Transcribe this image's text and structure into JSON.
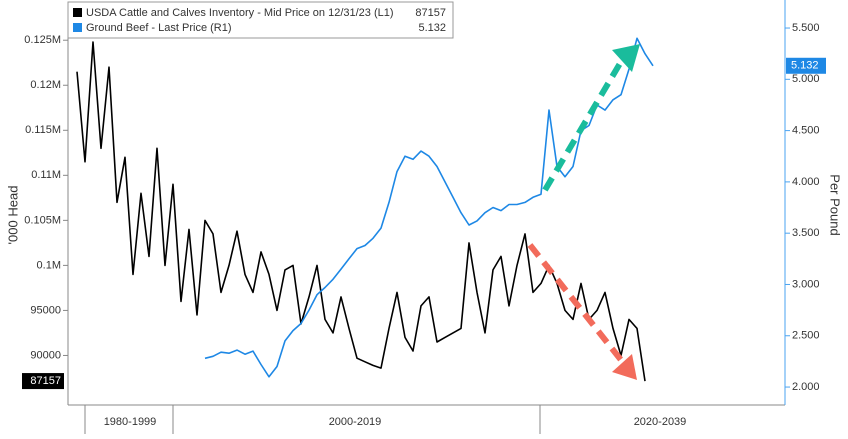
{
  "chart_data": {
    "type": "line",
    "series": [
      {
        "name": "USDA Cattle and Calves Inventory - Mid Price on 12/31/23 (L1)",
        "color": "#000000",
        "axis": "y",
        "values": [
          121500,
          111500,
          124800,
          113000,
          122000,
          107000,
          112000,
          99000,
          108000,
          101000,
          113000,
          100000,
          109000,
          96000,
          104000,
          94500,
          105000,
          103500,
          97000,
          100000,
          103800,
          99000,
          97000,
          101500,
          99000,
          95000,
          99500,
          100000,
          93500,
          96500,
          100000,
          94000,
          92500,
          96500,
          93000,
          89700,
          89300,
          88900,
          88600,
          93000,
          97000,
          92000,
          90500,
          95500,
          96500,
          91500,
          92000,
          92500,
          93000,
          102500,
          97000,
          92500,
          99500,
          101000,
          95500,
          100000,
          103500,
          97000,
          98000,
          100000,
          98000,
          95000,
          94000,
          98000,
          94000,
          95000,
          97000,
          93000,
          90000,
          94000,
          93000,
          87157,
          null
        ]
      },
      {
        "name": "Ground Beef - Last Price (R1)",
        "color": "#1e88e5",
        "axis": "y2",
        "values": [
          null,
          null,
          null,
          null,
          null,
          null,
          null,
          null,
          null,
          null,
          null,
          null,
          null,
          null,
          null,
          null,
          2.28,
          2.3,
          2.34,
          2.33,
          2.36,
          2.32,
          2.35,
          2.22,
          2.1,
          2.2,
          2.45,
          2.55,
          2.62,
          2.75,
          2.9,
          2.97,
          3.05,
          3.15,
          3.25,
          3.35,
          3.38,
          3.45,
          3.55,
          3.8,
          4.1,
          4.25,
          4.22,
          4.3,
          4.25,
          4.15,
          4.0,
          3.85,
          3.7,
          3.58,
          3.62,
          3.7,
          3.75,
          3.72,
          3.78,
          3.78,
          3.8,
          3.85,
          3.88,
          4.7,
          4.15,
          4.05,
          4.15,
          4.5,
          4.55,
          4.75,
          4.7,
          4.8,
          4.85,
          5.1,
          5.4,
          5.25,
          5.132
        ]
      }
    ],
    "ylabel": "'000 Head",
    "y2label": "Per Pound",
    "ylim": [
      84500,
      127800
    ],
    "yticks": [
      90000,
      95000,
      {
        "value": 100000,
        "label": "0.1M"
      },
      {
        "value": 105000,
        "label": "0.105M"
      },
      {
        "value": 110000,
        "label": "0.11M"
      },
      {
        "value": 115000,
        "label": "0.115M"
      },
      {
        "value": 120000,
        "label": "0.12M"
      },
      {
        "value": 125000,
        "label": "0.125M"
      }
    ],
    "y2lim": [
      1.825,
      5.627
    ],
    "y2ticks": [
      {
        "value": 2,
        "label": "2.000"
      },
      {
        "value": 2.5,
        "label": "2.500"
      },
      {
        "value": 3,
        "label": "3.000"
      },
      {
        "value": 3.5,
        "label": "3.500"
      },
      {
        "value": 4,
        "label": "4.000"
      },
      {
        "value": 4.5,
        "label": "4.500"
      },
      {
        "value": 5,
        "label": "5.000"
      },
      {
        "value": 5.5,
        "label": "5.500"
      }
    ],
    "x_group_labels": [
      "1980-1999",
      "2000-2019",
      "2020-2039"
    ]
  }
}
